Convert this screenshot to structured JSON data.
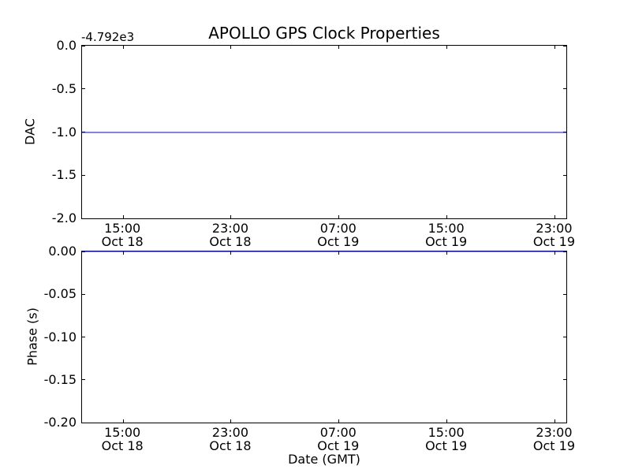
{
  "figure": {
    "background": "#ffffff",
    "spine_color": "#000000",
    "line_color": "#0000ff"
  },
  "chart_data": [
    {
      "type": "line",
      "title": "APOLLO GPS Clock Properties",
      "ylabel": "DAC",
      "offset_text": "-4.792e3",
      "ylim": [
        -2.0,
        0.0
      ],
      "ytick_values": [
        0.0,
        -0.5,
        -1.0,
        -1.5,
        -2.0
      ],
      "yticks": [
        "0.0",
        "-0.5",
        "-1.0",
        "-1.5",
        "-2.0"
      ],
      "xlim_hours": [
        11.95,
        47.85
      ],
      "xtick_hours": [
        15,
        23,
        31,
        39,
        47
      ],
      "xticks": [
        {
          "time": "15:00",
          "date": "Oct 18"
        },
        {
          "time": "23:00",
          "date": "Oct 18"
        },
        {
          "time": "07:00",
          "date": "Oct 19"
        },
        {
          "time": "15:00",
          "date": "Oct 19"
        },
        {
          "time": "23:00",
          "date": "Oct 19"
        }
      ],
      "grid": false,
      "legend": null,
      "series": [
        {
          "name": "DAC",
          "color": "#0000ff",
          "value": -1.0,
          "description": "constant horizontal line at -1.0 (axis offset -4.792e3, actual DAC ~ -4793) spanning full x range"
        }
      ]
    },
    {
      "type": "line",
      "title": "",
      "ylabel": "Phase (s)",
      "xlabel": "Date (GMT)",
      "ylim": [
        -0.2,
        0.0
      ],
      "ytick_values": [
        0.0,
        -0.05,
        -0.1,
        -0.15,
        -0.2
      ],
      "yticks": [
        "0.00",
        "-0.05",
        "-0.10",
        "-0.15",
        "-0.20"
      ],
      "xlim_hours": [
        11.95,
        47.85
      ],
      "xtick_hours": [
        15,
        23,
        31,
        39,
        47
      ],
      "xticks": [
        {
          "time": "15:00",
          "date": "Oct 18"
        },
        {
          "time": "23:00",
          "date": "Oct 18"
        },
        {
          "time": "07:00",
          "date": "Oct 19"
        },
        {
          "time": "15:00",
          "date": "Oct 19"
        },
        {
          "time": "23:00",
          "date": "Oct 19"
        }
      ],
      "grid": false,
      "legend": null,
      "series": [
        {
          "name": "Phase (s)",
          "color": "#0000ff",
          "value": 0.0,
          "description": "constant horizontal line at 0.00 coinciding with the top spine, spanning full x range"
        }
      ]
    }
  ]
}
